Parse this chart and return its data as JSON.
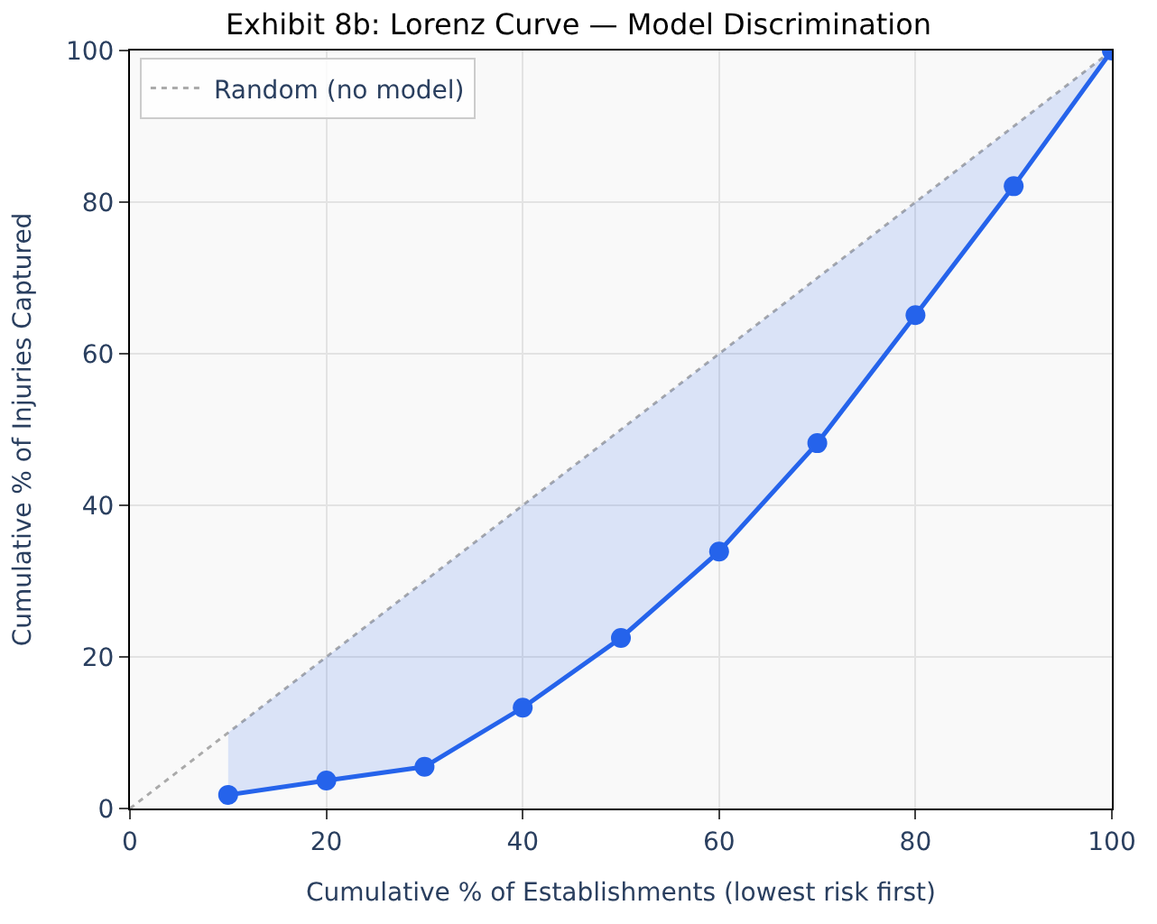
{
  "chart_data": {
    "type": "line",
    "title": "Exhibit 8b: Lorenz Curve — Model Discrimination",
    "xlabel": "Cumulative % of Establishments (lowest risk first)",
    "ylabel": "Cumulative % of Injuries Captured",
    "xlim": [
      0,
      100
    ],
    "ylim": [
      0,
      100
    ],
    "xticks": [
      0,
      20,
      40,
      60,
      80,
      100
    ],
    "yticks": [
      0,
      20,
      40,
      60,
      80,
      100
    ],
    "grid": true,
    "legend": "top left",
    "series": [
      {
        "name": "Random (no model)",
        "color": "#aaaaaa",
        "x": [
          0,
          100
        ],
        "values": [
          0,
          100
        ],
        "line_style": "dotted",
        "marker": "none"
      },
      {
        "color": "#2563eb",
        "x": [
          10,
          20,
          30,
          40,
          50,
          60,
          70,
          80,
          90,
          100
        ],
        "values": [
          1.8,
          3.7,
          5.5,
          13.3,
          22.5,
          33.9,
          48.2,
          65.1,
          82.1,
          100
        ],
        "lower": [
          1.8,
          3.7,
          5.5,
          13.3,
          22.5,
          33.9,
          48.2,
          65.1,
          82.1,
          100
        ],
        "upper": [
          10,
          20,
          30,
          40,
          50,
          60,
          70,
          80,
          90,
          100
        ],
        "line_style": "solid",
        "marker": "circle"
      }
    ]
  }
}
